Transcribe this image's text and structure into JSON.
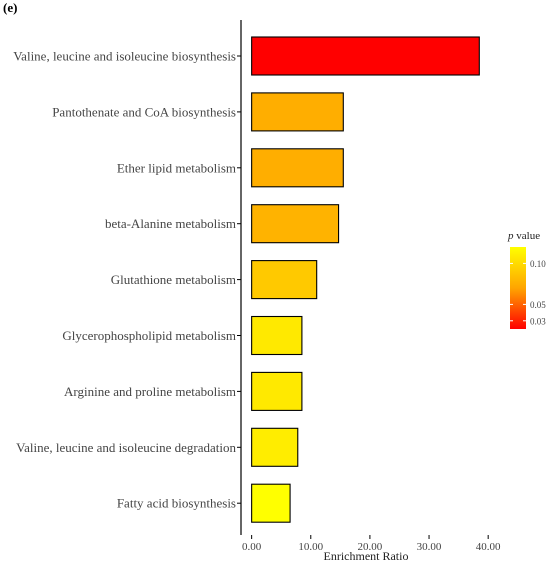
{
  "panel_label": "(e)",
  "chart_data": {
    "type": "bar",
    "orientation": "horizontal",
    "categories": [
      "Valine, leucine and isoleucine biosynthesis",
      "Pantothenate and CoA biosynthesis",
      "Ether lipid metabolism",
      "beta-Alanine metabolism",
      "Glutathione metabolism",
      "Glycerophospholipid metabolism",
      "Arginine and proline metabolism",
      "Valine, leucine and isoleucine degradation",
      "Fatty acid biosynthesis"
    ],
    "values": [
      38.5,
      15.5,
      15.5,
      14.7,
      11.0,
      8.5,
      8.5,
      7.8,
      6.5
    ],
    "p_values": [
      0.02,
      0.075,
      0.075,
      0.078,
      0.09,
      0.108,
      0.108,
      0.11,
      0.12
    ],
    "xlabel": "Enrichment Ratio",
    "ylabel": "",
    "xlim": [
      -1.8,
      42
    ],
    "x_ticks": [
      0,
      10,
      20,
      30,
      40
    ],
    "x_tick_labels": [
      "0.00",
      "10.00",
      "20.00",
      "30.00",
      "40.00"
    ],
    "grid": false,
    "legend": {
      "title_italic": "p",
      "title_rest": " value",
      "placement": "right",
      "range": [
        0.02,
        0.12
      ],
      "ticks": [
        0.03,
        0.05,
        0.1
      ],
      "tick_labels": [
        "0.03",
        "0.05",
        "0.10"
      ],
      "color_low": "#ff0000",
      "color_mid": "#ffa500",
      "color_high": "#ffff00"
    }
  }
}
